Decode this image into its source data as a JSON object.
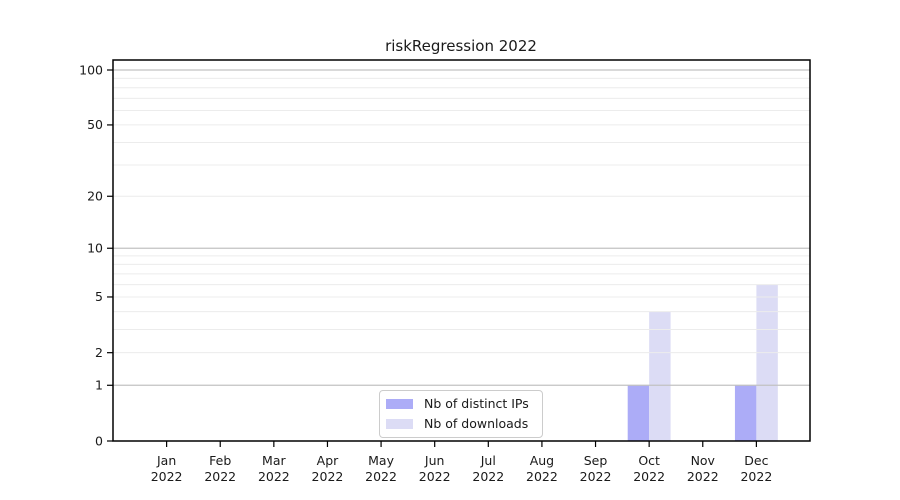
{
  "chart_data": {
    "type": "bar",
    "title": "riskRegression 2022",
    "categories": [
      "Jan",
      "Feb",
      "Mar",
      "Apr",
      "May",
      "Jun",
      "Jul",
      "Aug",
      "Sep",
      "Oct",
      "Nov",
      "Dec"
    ],
    "category_year_label": "2022",
    "series": [
      {
        "name": "Nb of distinct IPs",
        "color": "#acacf7",
        "values": [
          0,
          0,
          0,
          0,
          0,
          0,
          0,
          0,
          0,
          1,
          0,
          1
        ]
      },
      {
        "name": "Nb of downloads",
        "color": "#dcdcf5",
        "values": [
          0,
          0,
          0,
          0,
          0,
          0,
          0,
          0,
          0,
          4,
          0,
          6
        ]
      }
    ],
    "xlabel": "",
    "ylabel": "",
    "y_scale": "log1p",
    "ylim": [
      0,
      114
    ],
    "y_ticks": [
      0,
      1,
      2,
      5,
      10,
      20,
      50,
      100
    ],
    "y_major_gridlines": [
      1,
      10,
      100
    ],
    "y_minor_gridlines": [
      2,
      3,
      4,
      5,
      6,
      7,
      8,
      9,
      20,
      30,
      40,
      50,
      60,
      70,
      80,
      90
    ],
    "grid": "on",
    "legend_position": "inside-bottom-center",
    "colors": {
      "axis": "#000000",
      "tick_text": "#1a1a1a",
      "major_grid": "#c2c2c2",
      "minor_grid": "#ececec",
      "legend_border": "#cccccc",
      "background": "#ffffff"
    }
  }
}
